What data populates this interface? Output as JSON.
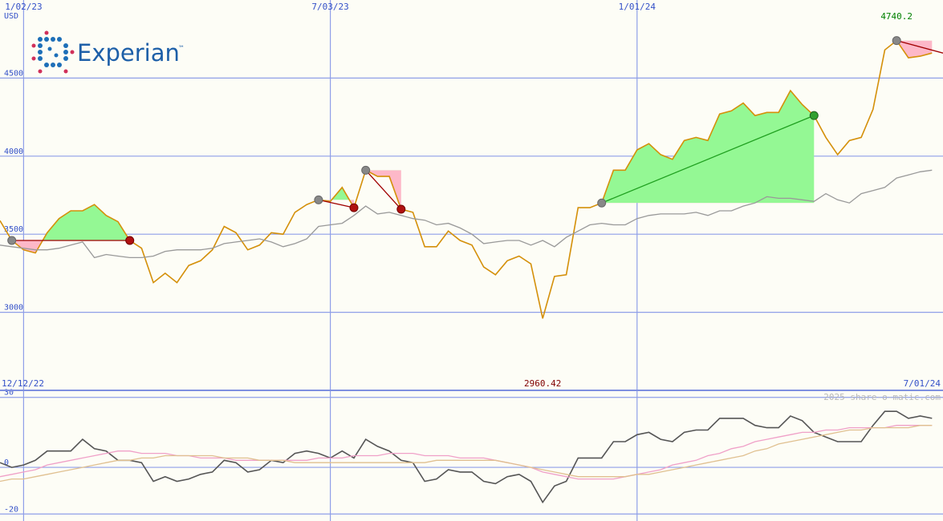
{
  "chart_data": [
    {
      "type": "line",
      "y_unit": "USD",
      "logo": {
        "text": "Experian",
        "mark": "™"
      },
      "max_label": "4740.2",
      "min_label": "2960.42",
      "categories": [
        null,
        null,
        "1/02/23",
        null,
        null,
        null,
        null,
        null,
        null,
        null,
        null,
        null,
        null,
        null,
        null,
        null,
        null,
        null,
        null,
        null,
        null,
        null,
        null,
        null,
        null,
        null,
        null,
        null,
        "7/03/23",
        null,
        null,
        null,
        null,
        null,
        null,
        null,
        null,
        null,
        null,
        null,
        null,
        null,
        null,
        null,
        null,
        null,
        null,
        null,
        null,
        null,
        null,
        null,
        null,
        null,
        "1/01/24",
        null,
        null,
        null,
        null,
        null,
        null,
        null,
        null,
        null,
        null,
        null,
        null,
        null,
        null,
        null,
        null,
        null,
        null,
        null,
        null,
        null,
        null,
        null,
        null,
        null
      ],
      "ylim": [
        2500,
        5000
      ],
      "yticks": [
        3000,
        3500,
        4000,
        4500
      ],
      "grid": true,
      "series": [
        {
          "color": "#d4900a",
          "values": [
            3587,
            3460,
            3400,
            3380,
            3510,
            3600,
            3650,
            3650,
            3690,
            3620,
            3580,
            3460,
            3410,
            3190,
            3250,
            3190,
            3300,
            3330,
            3400,
            3550,
            3510,
            3400,
            3430,
            3510,
            3500,
            3640,
            3690,
            3720,
            3710,
            3800,
            3670,
            3910,
            3870,
            3870,
            3660,
            3640,
            3420,
            3420,
            3520,
            3460,
            3430,
            3290,
            3240,
            3330,
            3360,
            3310,
            2960.42,
            3230,
            3240,
            3670,
            3670,
            3700,
            3910,
            3910,
            4040,
            4080,
            4010,
            3980,
            4100,
            4120,
            4100,
            4270,
            4290,
            4340,
            4260,
            4280,
            4280,
            4420,
            4330,
            4260,
            4120,
            4010,
            4100,
            4120,
            4300,
            4680,
            4740.2,
            4630,
            4640,
            4660
          ]
        },
        {
          "color": "#999999",
          "values": [
            3430,
            3420,
            3410,
            3400,
            3400,
            3410,
            3430,
            3450,
            3350,
            3370,
            3360,
            3350,
            3350,
            3360,
            3390,
            3400,
            3400,
            3400,
            3410,
            3440,
            3450,
            3460,
            3470,
            3450,
            3420,
            3440,
            3470,
            3550,
            3560,
            3570,
            3620,
            3680,
            3630,
            3640,
            3620,
            3600,
            3590,
            3560,
            3570,
            3540,
            3500,
            3440,
            3450,
            3460,
            3460,
            3430,
            3460,
            3420,
            3480,
            3520,
            3560,
            3570,
            3560,
            3560,
            3600,
            3620,
            3630,
            3630,
            3630,
            3640,
            3620,
            3650,
            3650,
            3680,
            3700,
            3740,
            3730,
            3730,
            3720,
            3710,
            3760,
            3720,
            3700,
            3760,
            3780,
            3800,
            3860,
            3880,
            3900,
            3910
          ]
        }
      ],
      "trades": [
        {
          "entry": 1,
          "exit": 11
        },
        {
          "entry": 27,
          "exit": 30
        },
        {
          "entry": 31,
          "exit": 34
        },
        {
          "entry": 51,
          "exit": 69
        },
        {
          "entry": 76,
          "exit": null
        }
      ]
    },
    {
      "type": "line",
      "start_label": "12/12/22",
      "end_label": "7/01/24",
      "watermark": "2025 share-o-matic.com",
      "ylim": [
        -23,
        33
      ],
      "yticks": [
        30,
        0,
        -20
      ],
      "grid": true,
      "series": [
        {
          "color": "#555555",
          "values": [
            2,
            0,
            1,
            3,
            7,
            7,
            7,
            12,
            8,
            7,
            3,
            3,
            2,
            -6,
            -4,
            -6,
            -5,
            -3,
            -2,
            3,
            2,
            -2,
            -1,
            3,
            2,
            6,
            7,
            6,
            4,
            7,
            4,
            12,
            9,
            7,
            3,
            2,
            -6,
            -5,
            -1,
            -2,
            -2,
            -6,
            -7,
            -4,
            -3,
            -6,
            -15,
            -8,
            -6,
            4,
            4,
            4,
            11,
            11,
            14,
            15,
            12,
            11,
            15,
            16,
            16,
            21,
            21,
            21,
            18,
            17,
            17,
            22,
            20,
            15,
            13,
            11,
            11,
            11,
            18,
            24,
            24,
            21,
            22,
            21
          ]
        },
        {
          "color": "#f0a0c8",
          "values": [
            -4,
            -3,
            -2,
            -1,
            1,
            2,
            3,
            4,
            5,
            6,
            7,
            7,
            6,
            6,
            6,
            5,
            5,
            4,
            4,
            4,
            3,
            3,
            3,
            3,
            3,
            3,
            3,
            4,
            4,
            4,
            5,
            5,
            5,
            6,
            6,
            6,
            5,
            5,
            5,
            4,
            4,
            4,
            3,
            2,
            1,
            0,
            -2,
            -3,
            -4,
            -5,
            -5,
            -5,
            -5,
            -4,
            -3,
            -2,
            -1,
            1,
            2,
            3,
            5,
            6,
            8,
            9,
            11,
            12,
            13,
            14,
            15,
            15,
            16,
            16,
            17,
            17,
            17,
            17,
            18,
            18,
            18,
            18
          ]
        },
        {
          "color": "#e0c090",
          "values": [
            -6,
            -5,
            -5,
            -4,
            -3,
            -2,
            -1,
            0,
            1,
            2,
            3,
            3,
            4,
            4,
            5,
            5,
            5,
            5,
            5,
            4,
            4,
            4,
            3,
            3,
            3,
            2,
            2,
            2,
            2,
            2,
            2,
            2,
            2,
            2,
            2,
            2,
            2,
            3,
            3,
            3,
            3,
            3,
            3,
            2,
            1,
            0,
            -1,
            -2,
            -3,
            -4,
            -4,
            -4,
            -4,
            -4,
            -3,
            -3,
            -2,
            -1,
            0,
            1,
            2,
            3,
            4,
            5,
            7,
            8,
            10,
            11,
            12,
            13,
            14,
            15,
            16,
            16,
            17,
            17,
            17,
            17,
            18,
            18
          ]
        }
      ]
    }
  ]
}
